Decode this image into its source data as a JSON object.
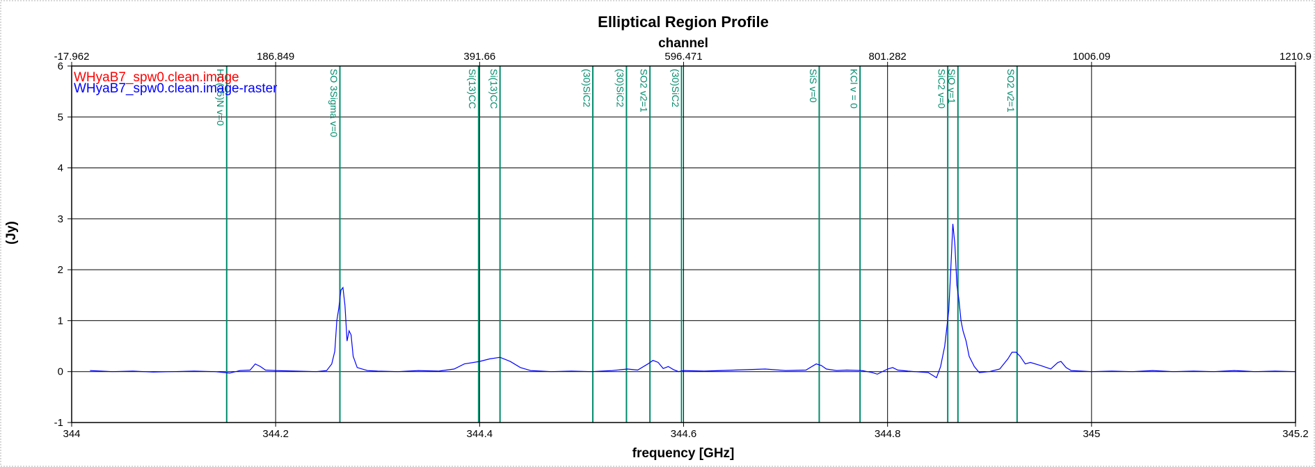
{
  "chart_data": {
    "type": "line",
    "title": "Elliptical Region Profile",
    "xlabel": "frequency [GHz]",
    "ylabel": "(Jy)",
    "x2label": "channel",
    "xlim": [
      344.0,
      345.2
    ],
    "ylim": [
      -1,
      6
    ],
    "x_ticks": [
      "344",
      "344.2",
      "344.4",
      "344.6",
      "344.8",
      "345",
      "345.2"
    ],
    "x_tick_values": [
      344.0,
      344.2,
      344.4,
      344.6,
      344.8,
      345.0,
      345.2
    ],
    "y_ticks": [
      "-1",
      "0",
      "1",
      "2",
      "3",
      "4",
      "5",
      "6"
    ],
    "y_tick_values": [
      -1,
      0,
      1,
      2,
      3,
      4,
      5,
      6
    ],
    "x2_ticks": [
      "-17.962",
      "186.849",
      "391.66",
      "596.471",
      "801.282",
      "1006.09",
      "1210.9"
    ],
    "x2_tick_freqs": [
      344.0,
      344.2,
      344.4,
      344.6,
      344.8,
      345.0,
      345.2
    ],
    "grid": true,
    "legend_placement": "top-left",
    "legend": [
      {
        "label": "WHyaB7_spw0.clean.image",
        "color": "#ff0000"
      },
      {
        "label": "WHyaB7_spw0.clean.image-raster",
        "color": "#0000ff"
      }
    ],
    "series": [
      {
        "name": "WHyaB7_spw0.clean.image-raster",
        "color": "#0000ff",
        "x": [
          344.018,
          344.04,
          344.06,
          344.08,
          344.1,
          344.12,
          344.14,
          344.155,
          344.165,
          344.175,
          344.18,
          344.185,
          344.19,
          344.2,
          344.22,
          344.24,
          344.25,
          344.255,
          344.258,
          344.26,
          344.262,
          344.264,
          344.266,
          344.268,
          344.27,
          344.272,
          344.274,
          344.276,
          344.28,
          344.29,
          344.3,
          344.32,
          344.34,
          344.36,
          344.375,
          344.385,
          344.4,
          344.41,
          344.42,
          344.43,
          344.44,
          344.45,
          344.47,
          344.49,
          344.51,
          344.53,
          344.545,
          344.555,
          344.565,
          344.57,
          344.575,
          344.58,
          344.585,
          344.59,
          344.595,
          344.6,
          344.62,
          344.65,
          344.68,
          344.7,
          344.72,
          344.73,
          344.735,
          344.74,
          344.75,
          344.76,
          344.775,
          344.785,
          344.79,
          344.8,
          344.805,
          344.81,
          344.82,
          344.84,
          344.848,
          344.852,
          344.856,
          344.86,
          344.862,
          344.864,
          344.866,
          344.868,
          344.87,
          344.872,
          344.874,
          344.877,
          344.88,
          344.885,
          344.89,
          344.9,
          344.91,
          344.918,
          344.922,
          344.926,
          344.93,
          344.935,
          344.94,
          344.95,
          344.96,
          344.967,
          344.97,
          344.975,
          344.98,
          345.0,
          345.02,
          345.04,
          345.06,
          345.08,
          345.1,
          345.12,
          345.14,
          345.16,
          345.18,
          345.2
        ],
        "y": [
          0.02,
          0.0,
          0.01,
          -0.01,
          0.0,
          0.01,
          0.0,
          -0.03,
          0.02,
          0.03,
          0.15,
          0.1,
          0.03,
          0.02,
          0.01,
          0.0,
          0.02,
          0.15,
          0.4,
          1.0,
          1.25,
          1.6,
          1.65,
          1.3,
          0.6,
          0.8,
          0.72,
          0.3,
          0.08,
          0.02,
          0.01,
          0.0,
          0.02,
          0.01,
          0.05,
          0.15,
          0.2,
          0.25,
          0.28,
          0.2,
          0.08,
          0.02,
          0.0,
          0.01,
          0.0,
          0.02,
          0.05,
          0.03,
          0.15,
          0.22,
          0.18,
          0.06,
          0.1,
          0.04,
          0.0,
          0.02,
          0.01,
          0.03,
          0.05,
          0.02,
          0.03,
          0.15,
          0.12,
          0.05,
          0.02,
          0.03,
          0.02,
          -0.02,
          -0.05,
          0.05,
          0.08,
          0.03,
          0.01,
          -0.02,
          -0.12,
          0.1,
          0.5,
          1.2,
          2.0,
          2.9,
          2.5,
          1.7,
          1.4,
          1.0,
          0.8,
          0.6,
          0.3,
          0.1,
          -0.02,
          0.0,
          0.05,
          0.25,
          0.38,
          0.38,
          0.3,
          0.15,
          0.18,
          0.12,
          0.05,
          0.18,
          0.2,
          0.08,
          0.02,
          0.0,
          0.01,
          0.0,
          0.02,
          0.0,
          0.01,
          0.0,
          0.02,
          0.0,
          0.01,
          0.0
        ]
      }
    ],
    "line_markers": [
      {
        "label": "HC(15)N v=0",
        "x": 344.152
      },
      {
        "label": "SO 3Sigma v=0",
        "x": 344.263
      },
      {
        "label": "Si(13)CC",
        "x": 344.399
      },
      {
        "label": "Si(13)CC",
        "x": 344.42
      },
      {
        "label": "(30)SiC2",
        "x": 344.511
      },
      {
        "label": "(30)SiC2",
        "x": 344.544
      },
      {
        "label": "SO2 v2=1",
        "x": 344.567
      },
      {
        "label": "(30)SiC2",
        "x": 344.598
      },
      {
        "label": "SiS v=0",
        "x": 344.733
      },
      {
        "label": "KCl v = 0",
        "x": 344.773
      },
      {
        "label": "SiC2 v=0",
        "x": 344.859
      },
      {
        "label": "SiO v=1",
        "x": 344.869
      },
      {
        "label": "SO2 v2=1",
        "x": 344.927
      }
    ],
    "marker_color": "#008b6b"
  }
}
